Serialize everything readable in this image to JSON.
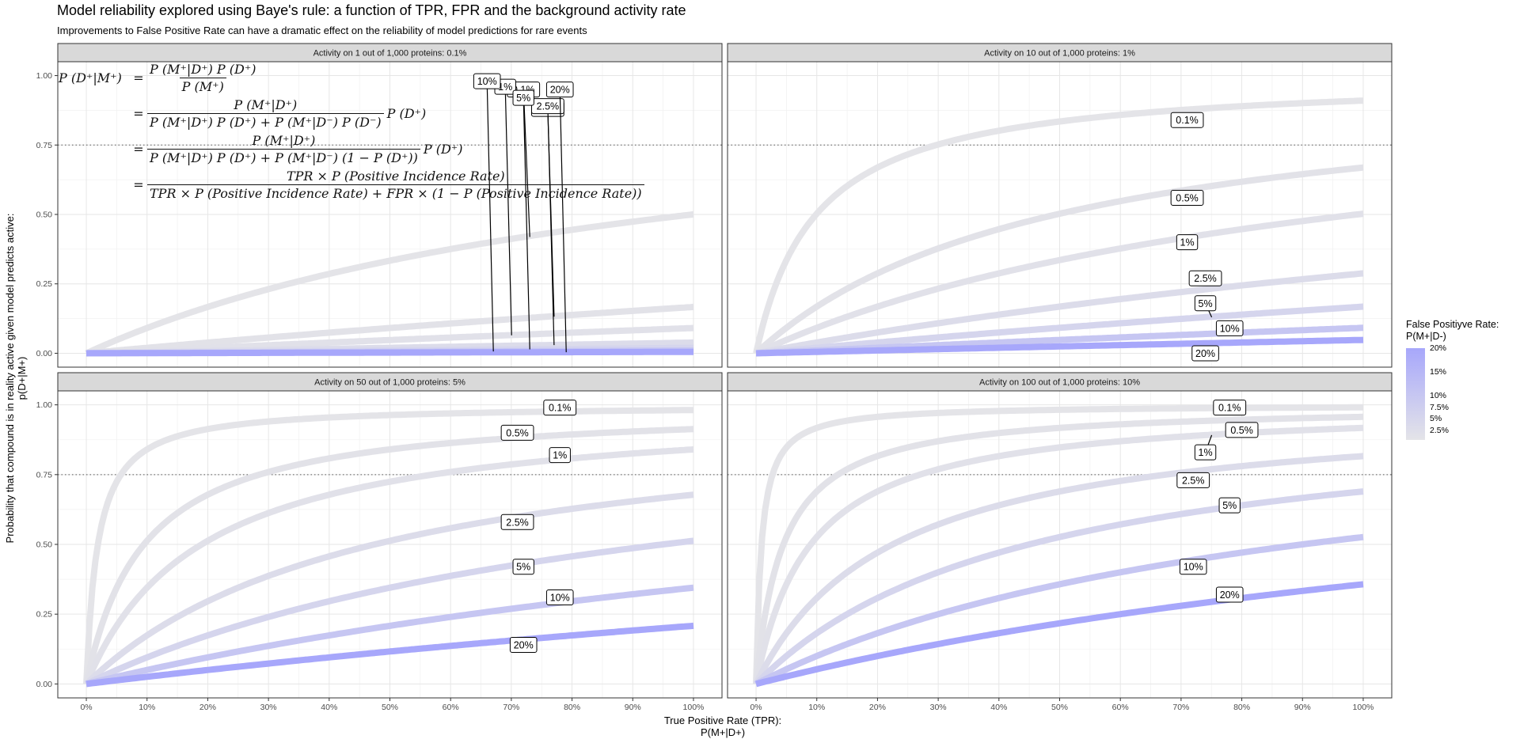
{
  "title": "Model reliability explored using Baye's rule: a function of TPR, FPR and the background activity rate",
  "subtitle": "Improvements to False Positive Rate can have a dramatic effect on the reliability of model predictions for rare events",
  "y_axis_title_line1": "Probability that compound is in reality active given model predicts active:",
  "y_axis_title_line2": "p(D+|M+)",
  "x_axis_title_line1": "True Positive Rate (TPR):",
  "x_axis_title_line2": "P(M+|D+)",
  "legend": {
    "title_line1": "False Positiyve Rate:",
    "title_line2": "P(M+|D-)",
    "ticks": [
      "20%",
      "15%",
      "10%",
      "7.5%",
      "5%",
      "2.5%"
    ],
    "color_low": "#e4e4e8",
    "color_high": "#a7a7fb"
  },
  "formula": {
    "lhs": "P (D⁺|M⁺)",
    "eq": "=",
    "l1_num": "P (M⁺|D⁺) P (D⁺)",
    "l1_den": "P (M⁺)",
    "l2_num": "P (M⁺|D⁺)",
    "l2_den": "P (M⁺|D⁺) P (D⁺) + P (M⁺|D⁻) P (D⁻)",
    "l2_tail": "P (D⁺)",
    "l3_num": "P (M⁺|D⁺)",
    "l3_den": "P (M⁺|D⁺) P (D⁺) + P (M⁺|D⁻) (1 − P (D⁺))",
    "l3_tail": "P (D⁺)",
    "l4_num": "TPR × P (Positive Incidence Rate)",
    "l4_den": "TPR × P (Positive Incidence Rate) + FPR × (1 − P (Positive Incidence Rate))"
  },
  "chart_data": {
    "type": "line",
    "facet_titles": [
      "Activity on 1 out of 1,000 proteins: 0.1%",
      "Activity on 10 out of 1,000 proteins: 1%",
      "Activity on 50 out of 1,000 proteins: 5%",
      "Activity on 100 out of 1,000 proteins: 10%"
    ],
    "prevalence": [
      0.001,
      0.01,
      0.05,
      0.1
    ],
    "fpr_series": [
      0.001,
      0.005,
      0.01,
      0.025,
      0.05,
      0.1,
      0.2
    ],
    "series_labels": [
      "0.1%",
      "0.5%",
      "1%",
      "2.5%",
      "5%",
      "10%",
      "20%"
    ],
    "x_range": [
      0,
      1
    ],
    "y_range": [
      0,
      1
    ],
    "x_ticks": [
      "0%",
      "10%",
      "20%",
      "30%",
      "40%",
      "50%",
      "60%",
      "70%",
      "80%",
      "90%",
      "100%"
    ],
    "y_ticks": [
      "0.00",
      "0.25",
      "0.50",
      "0.75",
      "1.00"
    ],
    "reference_line_y": 0.75,
    "labels": [
      [
        [
          0.72,
          0.95
        ],
        [
          0.76,
          0.88
        ],
        [
          0.69,
          0.96
        ],
        [
          0.76,
          0.89
        ],
        [
          0.72,
          0.92
        ],
        [
          0.66,
          0.98
        ],
        [
          0.78,
          0.95
        ]
      ],
      [
        [
          0.71,
          0.84
        ],
        [
          0.71,
          0.56
        ],
        [
          0.71,
          0.4
        ],
        [
          0.74,
          0.27
        ],
        [
          0.74,
          0.18
        ],
        [
          0.78,
          0.09
        ],
        [
          0.74,
          0.0
        ]
      ],
      [
        [
          0.78,
          0.99
        ],
        [
          0.71,
          0.9
        ],
        [
          0.78,
          0.82
        ],
        [
          0.71,
          0.58
        ],
        [
          0.72,
          0.42
        ],
        [
          0.78,
          0.31
        ],
        [
          0.72,
          0.14
        ]
      ],
      [
        [
          0.78,
          0.99
        ],
        [
          0.8,
          0.91
        ],
        [
          0.74,
          0.83
        ],
        [
          0.72,
          0.73
        ],
        [
          0.78,
          0.64
        ],
        [
          0.72,
          0.42
        ],
        [
          0.78,
          0.32
        ]
      ]
    ],
    "grid": true
  }
}
